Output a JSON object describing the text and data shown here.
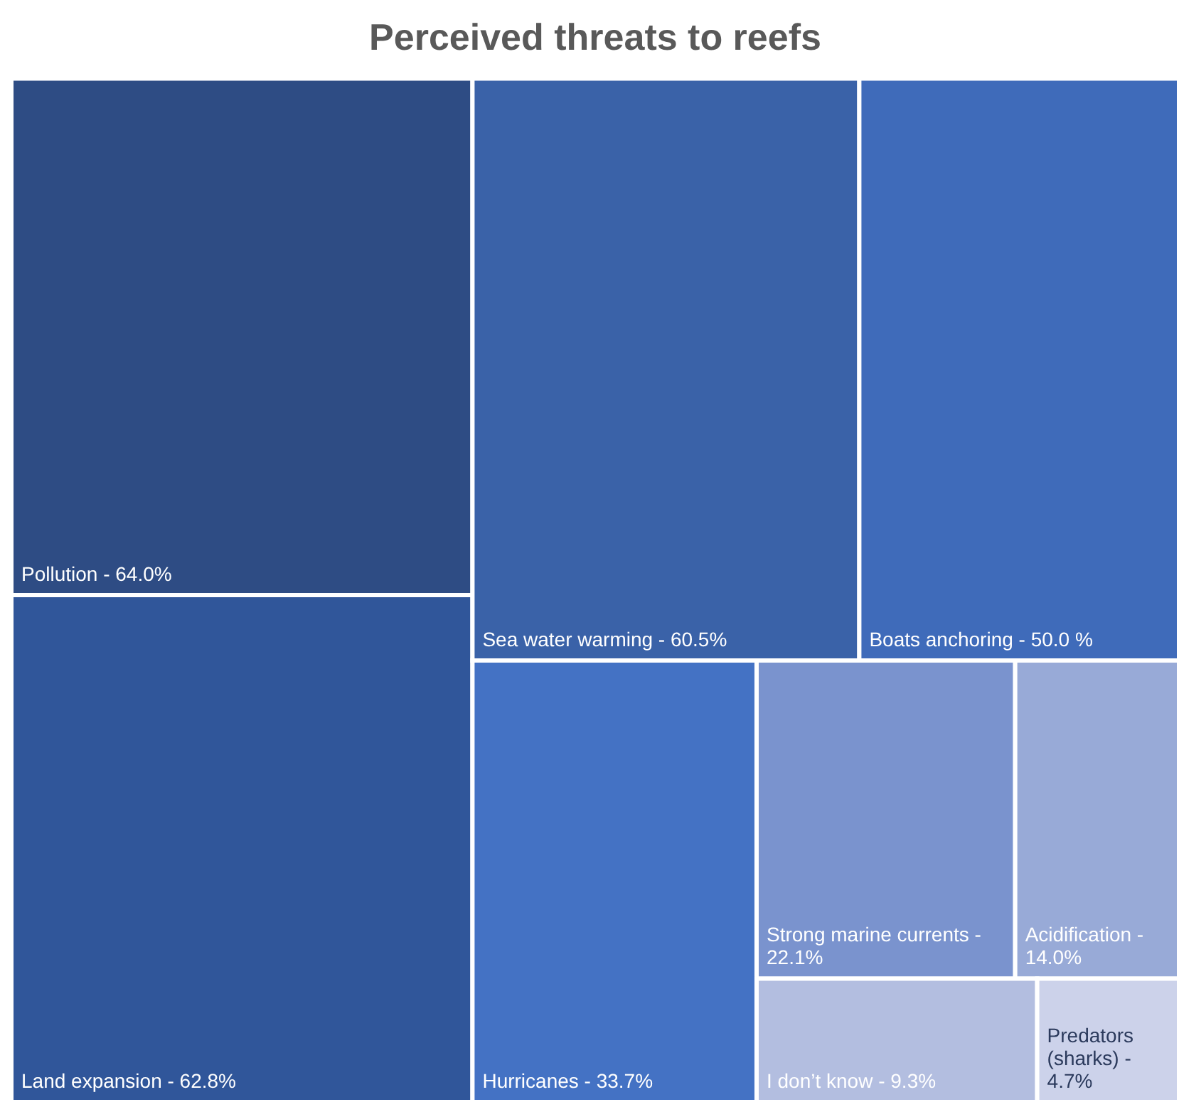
{
  "chart_data": {
    "type": "other",
    "title": "Perceived threats to reefs",
    "categories": [
      "Pollution -",
      "Land expansion -",
      "Sea water warming -",
      "Boats anchoring -",
      "Hurricanes -",
      "Strong marine currents -",
      "Acidification -",
      "I don’t know -",
      "Predators (sharks) -"
    ],
    "value_labels": [
      "64.0%",
      "62.8%",
      "60.5%",
      "50.0 %",
      "33.7%",
      "22.1%",
      "14.0%",
      "9.3%",
      "4.7%"
    ],
    "values": [
      64.0,
      62.8,
      60.5,
      50.0,
      33.7,
      22.1,
      14.0,
      9.3,
      4.7
    ],
    "colors": [
      "#2e4c84",
      "#30569a",
      "#3a62a8",
      "#3f6bba",
      "#4472c4",
      "#7a93ce",
      "#98aad7",
      "#b3bee0",
      "#ccd2ea"
    ]
  }
}
